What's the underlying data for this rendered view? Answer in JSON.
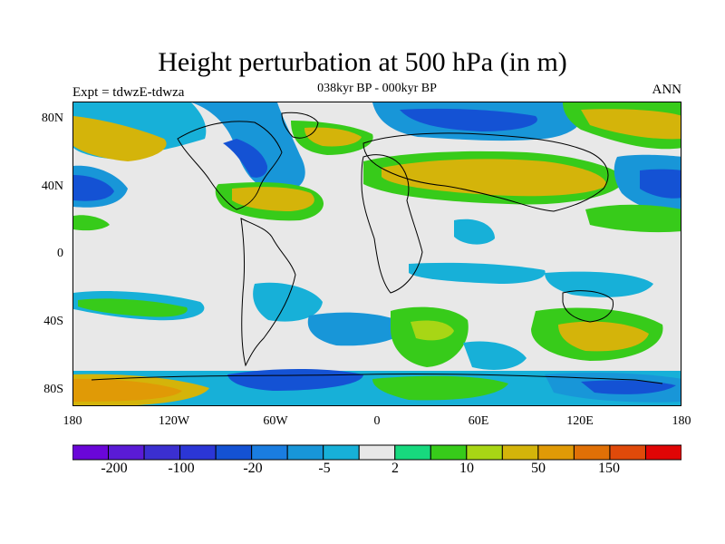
{
  "title": "Height perturbation at 500 hPa (in m)",
  "subtitle": "038kyr BP - 000kyr BP",
  "left_label": "Expt = tdwzE-tdwza",
  "right_label": "ANN",
  "lat_labels": [
    "80N",
    "40N",
    "0",
    "40S",
    "80S"
  ],
  "lon_labels": [
    "180",
    "120W",
    "60W",
    "0",
    "60E",
    "120E",
    "180"
  ],
  "colorbar": {
    "colors": [
      "#6a06d8",
      "#5a1bd6",
      "#3b2fd0",
      "#2b36d6",
      "#1452d4",
      "#1a7de0",
      "#1896d8",
      "#17b0d8",
      "#e8e8e8",
      "#17d97e",
      "#37cb1a",
      "#a8d615",
      "#d4b40a",
      "#e09a06",
      "#e07006",
      "#e04a0a",
      "#e00505"
    ],
    "labels": [
      "-200",
      "-100",
      "-20",
      "-5",
      "2",
      "10",
      "50",
      "150"
    ]
  },
  "map": {
    "background": "#e8e8e8",
    "fields": [
      {
        "name": "north-america-trough",
        "color": "#1896d8"
      },
      {
        "name": "north-america-trough-core",
        "color": "#1452d4"
      },
      {
        "name": "eurasia-ridge",
        "color": "#a8d615"
      },
      {
        "name": "pacific-ridge",
        "color": "#d4b40a"
      },
      {
        "name": "southern-band",
        "color": "#17b0d8"
      }
    ]
  }
}
